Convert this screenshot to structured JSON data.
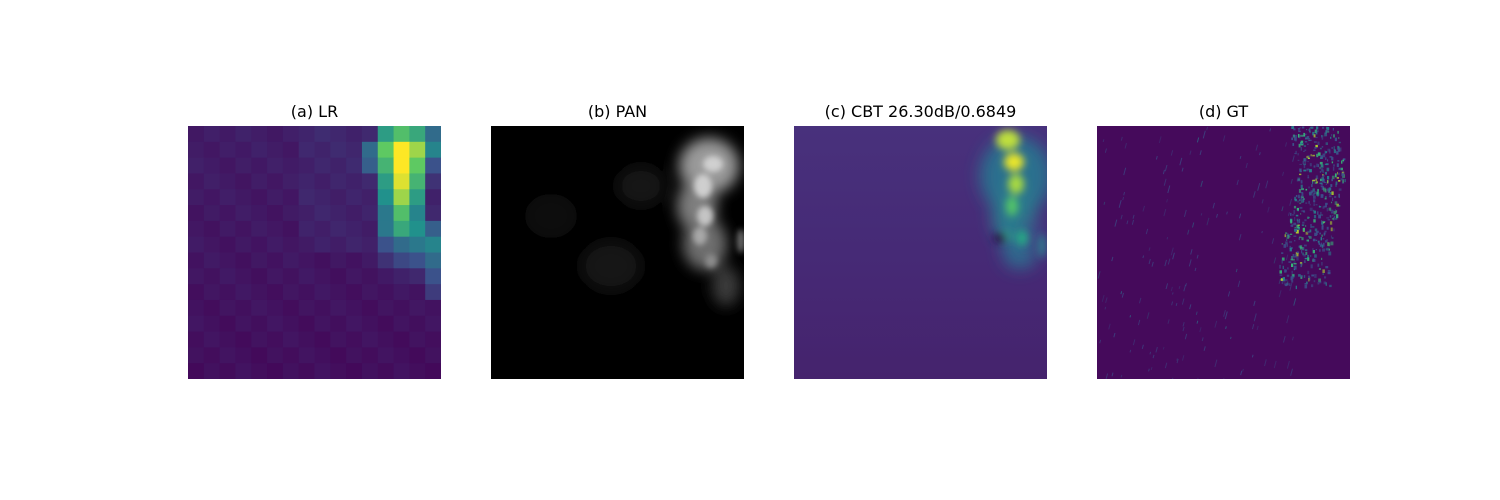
{
  "panels": [
    {
      "title": "(a) LR",
      "image": "low-resolution viridis heatmap"
    },
    {
      "title": "(b) PAN",
      "image": "grayscale panchromatic image"
    },
    {
      "title": "(c) CBT 26.30dB/0.6849",
      "image": "reconstructed viridis heatmap"
    },
    {
      "title": "(d) GT",
      "image": "ground-truth viridis heatmap"
    }
  ],
  "colors": {
    "viridis_low": "#440154",
    "viridis_mid": "#21918c",
    "viridis_high": "#fde725",
    "pan_low": "#000000",
    "pan_high": "#ffffff"
  }
}
